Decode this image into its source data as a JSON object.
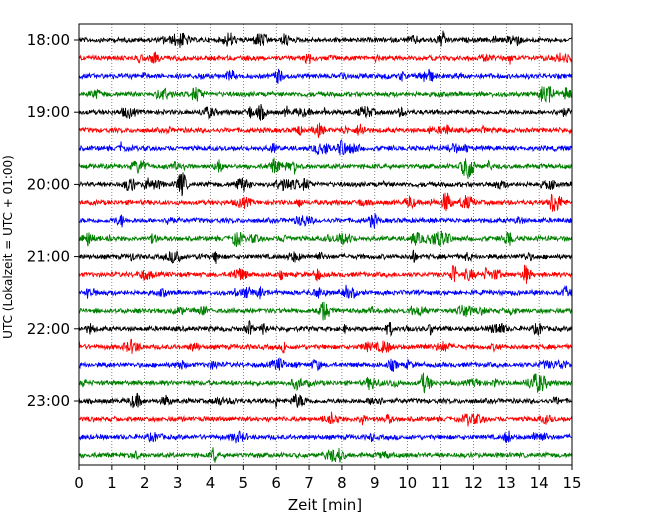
{
  "chart_data": {
    "type": "line",
    "title": "",
    "xlabel": "Zeit  [min]",
    "ylabel": "UTC (Lokalzeit = UTC + 01:00)",
    "xlim": [
      0,
      15
    ],
    "x_ticks": [
      "0",
      "1",
      "2",
      "3",
      "4",
      "5",
      "6",
      "7",
      "8",
      "9",
      "10",
      "11",
      "12",
      "13",
      "14",
      "15"
    ],
    "y_ticks": [
      "18:00",
      "19:00",
      "20:00",
      "21:00",
      "22:00",
      "23:00"
    ],
    "grid": "vertical-dotted",
    "trace_colors": [
      "#000000",
      "#ff0000",
      "#0000ff",
      "#008000"
    ],
    "traces": [
      {
        "start": "18:00",
        "color": "#000000"
      },
      {
        "start": "18:15",
        "color": "#ff0000"
      },
      {
        "start": "18:30",
        "color": "#0000ff"
      },
      {
        "start": "18:45",
        "color": "#008000"
      },
      {
        "start": "19:00",
        "color": "#000000"
      },
      {
        "start": "19:15",
        "color": "#ff0000"
      },
      {
        "start": "19:30",
        "color": "#0000ff"
      },
      {
        "start": "19:45",
        "color": "#008000"
      },
      {
        "start": "20:00",
        "color": "#000000"
      },
      {
        "start": "20:15",
        "color": "#ff0000"
      },
      {
        "start": "20:30",
        "color": "#0000ff"
      },
      {
        "start": "20:45",
        "color": "#008000"
      },
      {
        "start": "21:00",
        "color": "#000000"
      },
      {
        "start": "21:15",
        "color": "#ff0000"
      },
      {
        "start": "21:30",
        "color": "#0000ff"
      },
      {
        "start": "21:45",
        "color": "#008000"
      },
      {
        "start": "22:00",
        "color": "#000000"
      },
      {
        "start": "22:15",
        "color": "#ff0000"
      },
      {
        "start": "22:30",
        "color": "#0000ff"
      },
      {
        "start": "22:45",
        "color": "#008000"
      },
      {
        "start": "23:00",
        "color": "#000000"
      },
      {
        "start": "23:15",
        "color": "#ff0000"
      },
      {
        "start": "23:30",
        "color": "#0000ff"
      },
      {
        "start": "23:45",
        "color": "#008000"
      }
    ]
  }
}
